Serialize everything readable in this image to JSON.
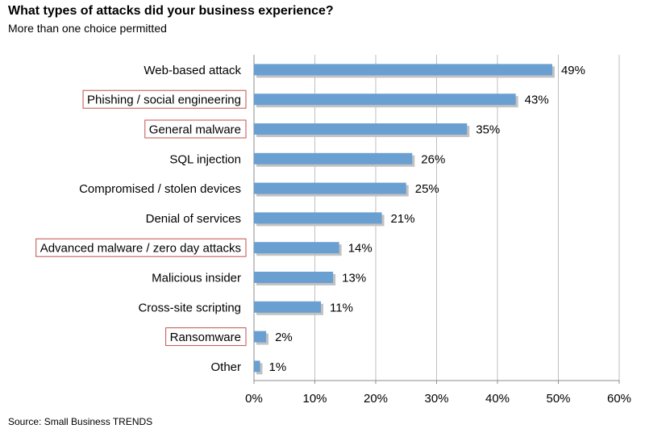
{
  "chart_data": {
    "type": "bar",
    "orientation": "horizontal",
    "title": "What types of attacks did your business experience?",
    "subtitle": "More than one choice permitted",
    "categories": [
      "Web-based attack",
      "Phishing / social engineering",
      "General malware",
      "SQL injection",
      "Compromised / stolen devices",
      "Denial of services",
      "Advanced malware / zero day attacks",
      "Malicious insider",
      "Cross-site scripting",
      "Ransomware",
      "Other"
    ],
    "values": [
      49,
      43,
      35,
      26,
      25,
      21,
      14,
      13,
      11,
      2,
      1
    ],
    "data_labels": [
      "49%",
      "43%",
      "35%",
      "26%",
      "25%",
      "21%",
      "14%",
      "13%",
      "11%",
      "2%",
      "1%"
    ],
    "highlighted_categories": [
      "Phishing / social engineering",
      "General malware",
      "Advanced malware / zero day attacks",
      "Ransomware"
    ],
    "xlim": [
      0,
      60
    ],
    "x_ticks": [
      0,
      10,
      20,
      30,
      40,
      50,
      60
    ],
    "x_tick_labels": [
      "0%",
      "10%",
      "20%",
      "30%",
      "40%",
      "50%",
      "60%"
    ],
    "xlabel": "",
    "ylabel": "",
    "grid": true,
    "legend": "none",
    "colors": {
      "bar": "#6a9fd1",
      "bar_shadow": "#c2c2c2",
      "highlight_border": "#c0504d",
      "grid": "#bfbfbf",
      "axis": "#8c8c8c"
    }
  },
  "source": "Source: Small Business TRENDS"
}
